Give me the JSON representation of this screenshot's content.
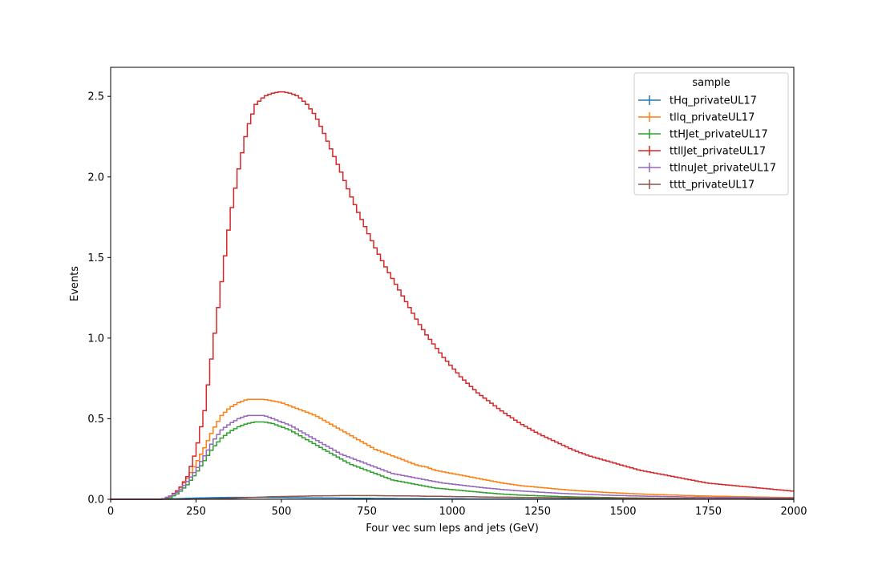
{
  "chart_data": {
    "type": "line",
    "xlabel": "Four vec sum leps and jets (GeV)",
    "ylabel": "Events",
    "xlim": [
      0,
      2000
    ],
    "ylim": [
      0,
      2.68
    ],
    "x_ticks": [
      "0",
      "250",
      "500",
      "750",
      "1000",
      "1250",
      "1500",
      "1750",
      "2000"
    ],
    "y_ticks": [
      "0.0",
      "0.5",
      "1.0",
      "1.5",
      "2.0",
      "2.5"
    ],
    "grid": false,
    "legend": {
      "title": "sample",
      "position": "upper right"
    },
    "x": [
      0,
      100,
      150,
      175,
      200,
      225,
      250,
      275,
      300,
      325,
      350,
      375,
      400,
      425,
      450,
      475,
      500,
      525,
      550,
      575,
      600,
      625,
      650,
      675,
      700,
      725,
      750,
      775,
      800,
      825,
      850,
      875,
      900,
      925,
      950,
      975,
      1000,
      1025,
      1050,
      1075,
      1100,
      1125,
      1150,
      1200,
      1250,
      1300,
      1350,
      1400,
      1450,
      1500,
      1550,
      1600,
      1650,
      1700,
      1750,
      1800,
      1850,
      1900,
      1950,
      2000
    ],
    "series": [
      {
        "name": "tHq_privateUL17",
        "color": "#1f77b4",
        "values": [
          0,
          0,
          0,
          0.002,
          0.004,
          0.006,
          0.008,
          0.009,
          0.01,
          0.011,
          0.012,
          0.012,
          0.012,
          0.012,
          0.012,
          0.011,
          0.011,
          0.01,
          0.01,
          0.009,
          0.009,
          0.008,
          0.008,
          0.007,
          0.007,
          0.006,
          0.006,
          0.005,
          0.005,
          0.005,
          0.004,
          0.004,
          0.004,
          0.003,
          0.003,
          0.003,
          0.003,
          0.003,
          0.002,
          0.002,
          0.002,
          0.002,
          0.002,
          0.002,
          0.001,
          0.001,
          0.001,
          0.001,
          0.001,
          0.001,
          0.001,
          0.001,
          0.001,
          0.001,
          0.001,
          0.001,
          0.001,
          0,
          0,
          0
        ]
      },
      {
        "name": "tllq_privateUL17",
        "color": "#ff7f0e",
        "values": [
          0,
          0,
          0,
          0.02,
          0.06,
          0.13,
          0.22,
          0.32,
          0.43,
          0.52,
          0.57,
          0.6,
          0.62,
          0.62,
          0.62,
          0.61,
          0.6,
          0.58,
          0.56,
          0.54,
          0.52,
          0.49,
          0.46,
          0.43,
          0.4,
          0.37,
          0.34,
          0.31,
          0.29,
          0.27,
          0.25,
          0.23,
          0.21,
          0.2,
          0.18,
          0.17,
          0.16,
          0.15,
          0.14,
          0.13,
          0.12,
          0.11,
          0.1,
          0.085,
          0.075,
          0.065,
          0.056,
          0.049,
          0.043,
          0.038,
          0.033,
          0.029,
          0.026,
          0.023,
          0.02,
          0.018,
          0.016,
          0.014,
          0.012,
          0.011
        ]
      },
      {
        "name": "ttHJet_privateUL17",
        "color": "#2ca02c",
        "values": [
          0,
          0,
          0,
          0.01,
          0.04,
          0.09,
          0.16,
          0.24,
          0.32,
          0.38,
          0.42,
          0.45,
          0.47,
          0.48,
          0.48,
          0.47,
          0.45,
          0.43,
          0.4,
          0.37,
          0.34,
          0.31,
          0.28,
          0.25,
          0.22,
          0.2,
          0.18,
          0.16,
          0.14,
          0.12,
          0.11,
          0.1,
          0.09,
          0.08,
          0.07,
          0.065,
          0.06,
          0.055,
          0.05,
          0.045,
          0.04,
          0.036,
          0.032,
          0.026,
          0.022,
          0.018,
          0.015,
          0.013,
          0.011,
          0.009,
          0.008,
          0.007,
          0.006,
          0.005,
          0.004,
          0.004,
          0.003,
          0.003,
          0.002,
          0.002
        ]
      },
      {
        "name": "ttllJet_privateUL17",
        "color": "#d62728",
        "values": [
          0,
          0,
          0,
          0.02,
          0.06,
          0.14,
          0.3,
          0.55,
          0.95,
          1.35,
          1.75,
          2.05,
          2.3,
          2.45,
          2.5,
          2.52,
          2.53,
          2.52,
          2.5,
          2.45,
          2.38,
          2.27,
          2.15,
          2.03,
          1.9,
          1.78,
          1.67,
          1.56,
          1.46,
          1.37,
          1.28,
          1.19,
          1.1,
          1.02,
          0.95,
          0.88,
          0.82,
          0.76,
          0.71,
          0.66,
          0.62,
          0.58,
          0.54,
          0.47,
          0.41,
          0.36,
          0.31,
          0.27,
          0.24,
          0.21,
          0.18,
          0.16,
          0.14,
          0.12,
          0.1,
          0.09,
          0.08,
          0.07,
          0.06,
          0.05
        ]
      },
      {
        "name": "ttlnuJet_privateUL17",
        "color": "#9467bd",
        "values": [
          0,
          0,
          0,
          0.02,
          0.05,
          0.11,
          0.18,
          0.27,
          0.36,
          0.43,
          0.47,
          0.5,
          0.52,
          0.52,
          0.52,
          0.5,
          0.48,
          0.46,
          0.43,
          0.4,
          0.37,
          0.34,
          0.31,
          0.28,
          0.26,
          0.24,
          0.22,
          0.2,
          0.18,
          0.16,
          0.15,
          0.14,
          0.13,
          0.12,
          0.11,
          0.1,
          0.095,
          0.088,
          0.082,
          0.076,
          0.07,
          0.065,
          0.06,
          0.052,
          0.045,
          0.039,
          0.034,
          0.03,
          0.026,
          0.023,
          0.02,
          0.018,
          0.016,
          0.014,
          0.012,
          0.011,
          0.01,
          0.009,
          0.008,
          0.007
        ]
      },
      {
        "name": "tttt_privateUL17",
        "color": "#8c564b",
        "values": [
          0,
          0,
          0,
          0,
          0,
          0,
          0.001,
          0.002,
          0.003,
          0.004,
          0.006,
          0.008,
          0.01,
          0.012,
          0.014,
          0.016,
          0.017,
          0.018,
          0.019,
          0.02,
          0.021,
          0.022,
          0.022,
          0.023,
          0.023,
          0.023,
          0.023,
          0.023,
          0.022,
          0.022,
          0.021,
          0.021,
          0.02,
          0.019,
          0.019,
          0.018,
          0.017,
          0.016,
          0.016,
          0.015,
          0.014,
          0.013,
          0.013,
          0.012,
          0.011,
          0.01,
          0.009,
          0.008,
          0.008,
          0.007,
          0.006,
          0.006,
          0.005,
          0.005,
          0.004,
          0.004,
          0.004,
          0.003,
          0.003,
          0.003
        ]
      }
    ]
  }
}
